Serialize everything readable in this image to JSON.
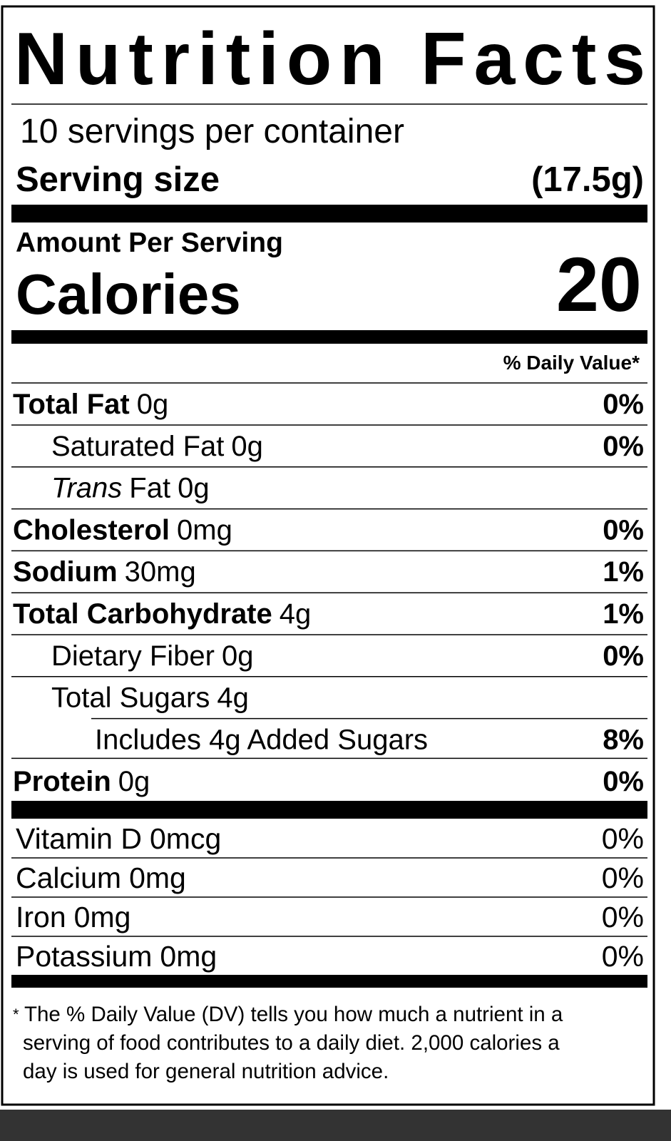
{
  "title": "Nutrition Facts",
  "servings": "10 servings per container",
  "serving_size": {
    "label": "Serving size",
    "value": "(17.5g)"
  },
  "amount_per_serving": "Amount Per Serving",
  "calories": {
    "label": "Calories",
    "value": "20"
  },
  "daily_value_header": "% Daily Value*",
  "nutrients": [
    {
      "name": "Total Fat",
      "amount": "0g",
      "dv": "0%",
      "bold": true,
      "indent": 0
    },
    {
      "name": "Saturated Fat",
      "amount": "0g",
      "dv": "0%",
      "bold": false,
      "indent": 1
    },
    {
      "italic": "Trans",
      "name": "Fat",
      "amount": "0g",
      "bold": false,
      "indent": 1
    },
    {
      "name": "Cholesterol",
      "amount": "0mg",
      "dv": "0%",
      "bold": true,
      "indent": 0
    },
    {
      "name": "Sodium",
      "amount": "30mg",
      "dv": "1%",
      "bold": true,
      "indent": 0
    },
    {
      "name": "Total Carbohydrate",
      "amount": "4g",
      "dv": "1%",
      "bold": true,
      "indent": 0
    },
    {
      "name": "Dietary Fiber",
      "amount": "0g",
      "dv": "0%",
      "bold": false,
      "indent": 1
    },
    {
      "name": "Total Sugars",
      "amount": "4g",
      "bold": false,
      "indent": 1
    },
    {
      "name": "Includes 4g Added Sugars",
      "dv": "8%",
      "bold": false,
      "indent": 2
    },
    {
      "name": "Protein",
      "amount": "0g",
      "dv": "0%",
      "bold": true,
      "indent": 0
    }
  ],
  "vitamins": [
    {
      "name": "Vitamin D",
      "amount": "0mcg",
      "dv": "0%"
    },
    {
      "name": "Calcium",
      "amount": "0mg",
      "dv": "0%"
    },
    {
      "name": "Iron",
      "amount": "0mg",
      "dv": "0%"
    },
    {
      "name": "Potassium",
      "amount": "0mg",
      "dv": "0%"
    }
  ],
  "footnote": {
    "marker": "*",
    "lines": [
      "The % Daily Value (DV) tells you how much a nutrient in a",
      "serving of food contributes to a daily diet. 2,000 calories a",
      "day is used for general nutrition advice."
    ]
  }
}
